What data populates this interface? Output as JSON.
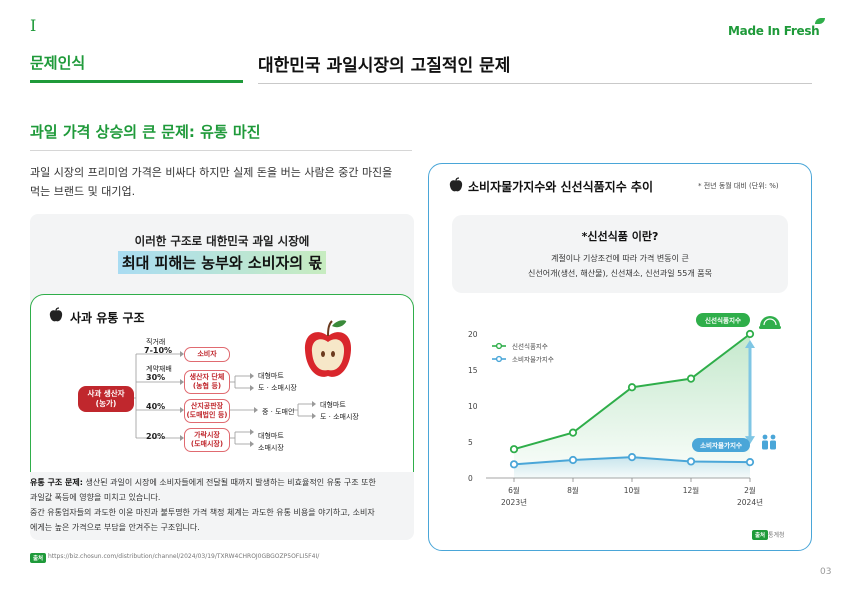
{
  "header": {
    "roman": "I",
    "logo": "Made In Fresh",
    "section_label": "문제인식",
    "section_title": "대한민국 과일시장의 고질적인 문제"
  },
  "subtitle": "과일 가격 상승의 큰 문제: 유통 마진",
  "intro": {
    "line1": "과일 시장의 프리미엄 가격은 비싸다 하지만 실제 돈을 버는 사람은 중간 마진을",
    "line2": "먹는 브랜드 및 대기업."
  },
  "panel": {
    "line1": "이러한 구조로 대한민국 과일 시장에",
    "highlight": "최대 피해는 농부와 소비자의 몫"
  },
  "structure": {
    "title": "사과 유통 구조",
    "source_label": "사과 생산자",
    "source_sub": "(농가)",
    "branches": [
      {
        "top": "직거래",
        "pct": "7-10%",
        "node": "소비자",
        "node_sub": ""
      },
      {
        "top": "계약재배",
        "pct": "30%",
        "node": "생산자 단체",
        "node_sub": "(농협 등)"
      },
      {
        "top": "",
        "pct": "40%",
        "node": "산지공판장",
        "node_sub": "(도매법인 등)"
      },
      {
        "top": "",
        "pct": "20%",
        "node": "가락시장",
        "node_sub": "(도매시장)"
      }
    ],
    "outputs": {
      "b1": [
        "대형마트",
        "도 · 소매시장"
      ],
      "b2_mid": "중 · 도매인",
      "b2_out": [
        "대형마트",
        "도 · 소매시장"
      ],
      "b3": [
        "대형마트",
        "소매시장"
      ]
    }
  },
  "desc": {
    "bold": "유통 구조 문제:",
    "line1": " 생산된 과일이 시장에 소비자들에게 전달될 때까지 발생하는 비효율적인 유통 구조 또한",
    "line2": "과일값 폭등에 영향을 미치고 있습니다.",
    "line3": "중간 유통업자들의 과도한 이윤 마진과 불투명한 가격 책정 체계는 과도한 유통 비용을 야기하고, 소비자",
    "line4": "에게는 높은 가격으로 부담을 안겨주는 구조입니다."
  },
  "source": {
    "badge": "출처",
    "url": "https://biz.chosun.com/distribution/channel/2024/03/19/TXRW4CHROJ0GBGOZP5OFLI5F4I/"
  },
  "right": {
    "title": "소비자물가지수와 신선식품지수 추이",
    "note": "* 전년 동월 대비 (단위: %)",
    "info_title": "*신선식품 이란?",
    "info_line1": "계절이나 기상조건에 따라 가격 변동이 큰",
    "info_line2": "신선어개(생선, 해산물), 신선채소, 신선과일 55개 품목",
    "chart_source_badge": "출처",
    "chart_source": "통계청"
  },
  "chart_data": {
    "type": "line",
    "categories": [
      "6월",
      "8월",
      "10월",
      "12월",
      "2월"
    ],
    "year_labels": [
      "2023년",
      "",
      "",
      "",
      "2024년"
    ],
    "ylim": [
      0,
      20
    ],
    "yticks": [
      "0",
      "5",
      "10",
      "15",
      "20"
    ],
    "series": [
      {
        "name": "신선식품지수",
        "color": "#2fae4a",
        "values": [
          4.0,
          6.3,
          12.6,
          13.8,
          20.0
        ]
      },
      {
        "name": "소비자물가지수",
        "color": "#4aa6d8",
        "values": [
          1.9,
          2.5,
          2.9,
          2.3,
          2.2
        ]
      }
    ],
    "callouts": {
      "fresh": "신선식품지수",
      "cpi": "소비자물가지수"
    },
    "legend": "top-left"
  },
  "page_number": "03",
  "colors": {
    "accent": "#1f9a3a",
    "blue": "#4aa6d8",
    "red": "#c0272d"
  }
}
